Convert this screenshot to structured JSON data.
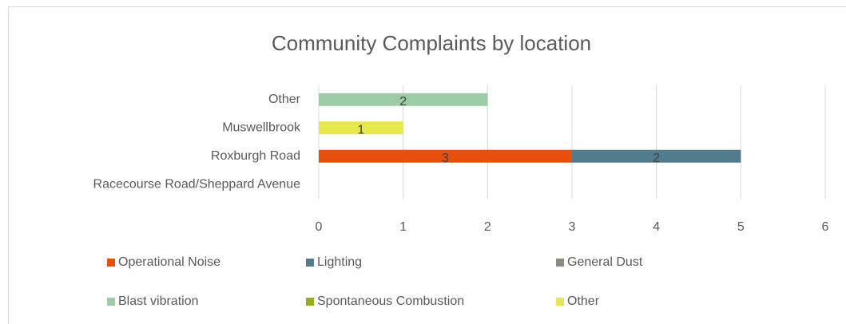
{
  "chart_data": {
    "type": "bar",
    "orientation": "horizontal",
    "stacked": true,
    "title": "Community Complaints by location",
    "categories": [
      "Other",
      "Muswellbrook",
      "Roxburgh Road",
      "Racecourse Road/Sheppard Avenue"
    ],
    "series": [
      {
        "name": "Operational Noise",
        "color": "#e8500a",
        "values": [
          null,
          null,
          3,
          null
        ]
      },
      {
        "name": "Lighting",
        "color": "#537b8e",
        "values": [
          null,
          null,
          2,
          null
        ]
      },
      {
        "name": "General Dust",
        "color": "#8c8c7e",
        "values": [
          null,
          null,
          null,
          null
        ]
      },
      {
        "name": "Blast vibration",
        "color": "#9dcba6",
        "values": [
          2,
          null,
          null,
          null
        ]
      },
      {
        "name": "Spontaneous Combustion",
        "color": "#9aab1c",
        "values": [
          null,
          null,
          null,
          null
        ]
      },
      {
        "name": "Other",
        "color": "#e6e84c",
        "values": [
          null,
          1,
          null,
          null
        ]
      }
    ],
    "xlim": [
      0,
      6
    ],
    "xticks": [
      0,
      1,
      2,
      3,
      4,
      5,
      6
    ],
    "grid": true,
    "legend": "bottom"
  }
}
